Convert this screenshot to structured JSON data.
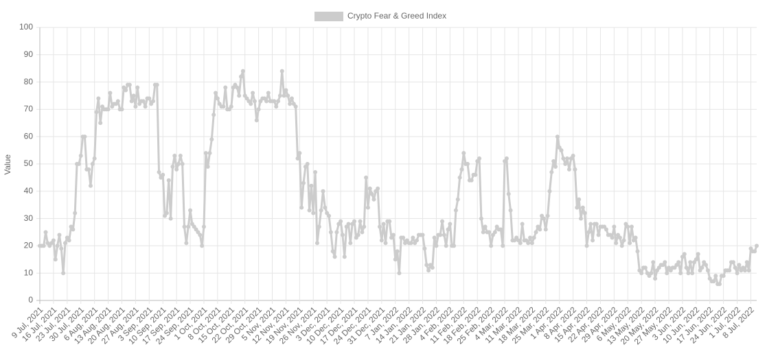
{
  "chart_data": {
    "type": "line",
    "y_label": "Value",
    "categories": [
      "9 Jul, 2021",
      null,
      null,
      null,
      null,
      null,
      null,
      "16 Jul, 2021",
      null,
      null,
      null,
      null,
      null,
      null,
      "23 Jul, 2021",
      null,
      null,
      null,
      null,
      null,
      null,
      "30 Jul, 2021",
      null,
      null,
      null,
      null,
      null,
      null,
      "6 Aug, 2021",
      null,
      null,
      null,
      null,
      null,
      null,
      "13 Aug, 2021",
      null,
      null,
      null,
      null,
      null,
      null,
      "20 Aug, 2021",
      null,
      null,
      null,
      null,
      null,
      null,
      "27 Aug, 2021",
      null,
      null,
      null,
      null,
      null,
      null,
      "3 Sep, 2021",
      null,
      null,
      null,
      null,
      null,
      null,
      "10 Sep, 2021",
      null,
      null,
      null,
      null,
      null,
      null,
      "17 Sep, 2021",
      null,
      null,
      null,
      null,
      null,
      null,
      "24 Sep, 2021",
      null,
      null,
      null,
      null,
      null,
      null,
      "1 Oct, 2021",
      null,
      null,
      null,
      null,
      null,
      null,
      "8 Oct, 2021",
      null,
      null,
      null,
      null,
      null,
      null,
      "15 Oct, 2021",
      null,
      null,
      null,
      null,
      null,
      null,
      "22 Oct, 2021",
      null,
      null,
      null,
      null,
      null,
      null,
      "29 Oct, 2021",
      null,
      null,
      null,
      null,
      null,
      null,
      "5 Nov, 2021",
      null,
      null,
      null,
      null,
      null,
      null,
      "12 Nov, 2021",
      null,
      null,
      null,
      null,
      null,
      null,
      "19 Nov, 2021",
      null,
      null,
      null,
      null,
      null,
      null,
      "26 Nov, 2021",
      null,
      null,
      null,
      null,
      null,
      null,
      "3 Dec, 2021",
      null,
      null,
      null,
      null,
      null,
      null,
      "10 Dec, 2021",
      null,
      null,
      null,
      null,
      null,
      null,
      "17 Dec, 2021",
      null,
      null,
      null,
      null,
      null,
      null,
      "24 Dec, 2021",
      null,
      null,
      null,
      null,
      null,
      null,
      "31 Dec, 2021",
      null,
      null,
      null,
      null,
      null,
      null,
      "7 Jan, 2022",
      null,
      null,
      null,
      null,
      null,
      null,
      "14 Jan, 2022",
      null,
      null,
      null,
      null,
      null,
      null,
      "21 Jan, 2022",
      null,
      null,
      null,
      null,
      null,
      null,
      "28 Jan, 2022",
      null,
      null,
      null,
      null,
      null,
      null,
      "4 Feb, 2022",
      null,
      null,
      null,
      null,
      null,
      null,
      "11 Feb, 2022",
      null,
      null,
      null,
      null,
      null,
      null,
      "18 Feb, 2022",
      null,
      null,
      null,
      null,
      null,
      null,
      "25 Feb, 2022",
      null,
      null,
      null,
      null,
      null,
      null,
      "4 Mar, 2022",
      null,
      null,
      null,
      null,
      null,
      null,
      "11 Mar, 2022",
      null,
      null,
      null,
      null,
      null,
      null,
      "18 Mar, 2022",
      null,
      null,
      null,
      null,
      null,
      null,
      "25 Mar, 2022",
      null,
      null,
      null,
      null,
      null,
      null,
      "1 Apr, 2022",
      null,
      null,
      null,
      null,
      null,
      null,
      "8 Apr, 2022",
      null,
      null,
      null,
      null,
      null,
      null,
      "15 Apr, 2022",
      null,
      null,
      null,
      null,
      null,
      null,
      "22 Apr, 2022",
      null,
      null,
      null,
      null,
      null,
      null,
      "29 Apr, 2022",
      null,
      null,
      null,
      null,
      null,
      null,
      "6 May, 2022",
      null,
      null,
      null,
      null,
      null,
      null,
      "13 May, 2022",
      null,
      null,
      null,
      null,
      null,
      null,
      "20 May, 2022",
      null,
      null,
      null,
      null,
      null,
      null,
      "27 May, 2022",
      null,
      null,
      null,
      null,
      null,
      null,
      "3 Jun, 2022",
      null,
      null,
      null,
      null,
      null,
      null,
      "10 Jun, 2022",
      null,
      null,
      null,
      null,
      null,
      null,
      "17 Jun, 2022",
      null,
      null,
      null,
      null,
      null,
      null,
      "24 Jun, 2022",
      null,
      null,
      null,
      null,
      null,
      null,
      "1 Jul, 2022",
      null,
      null,
      null,
      null,
      null,
      null,
      "8 Jul, 2022",
      null,
      null,
      null
    ],
    "series": [
      {
        "name": "Crypto Fear & Greed Index",
        "color": "#cccccc",
        "values": [
          20,
          20,
          20,
          25,
          21,
          20,
          21,
          22,
          15,
          20,
          24,
          19,
          10,
          21,
          23,
          22,
          27,
          26,
          32,
          50,
          50,
          53,
          60,
          60,
          48,
          48,
          42,
          50,
          52,
          69,
          74,
          65,
          71,
          70,
          70,
          70,
          76,
          71,
          72,
          72,
          73,
          70,
          70,
          78,
          77,
          79,
          79,
          73,
          75,
          71,
          78,
          72,
          73,
          73,
          71,
          74,
          74,
          72,
          73,
          79,
          79,
          47,
          45,
          46,
          31,
          32,
          44,
          30,
          49,
          53,
          48,
          50,
          53,
          50,
          27,
          21,
          27,
          33,
          28,
          27,
          26,
          25,
          24,
          20,
          27,
          54,
          49,
          54,
          59,
          68,
          76,
          74,
          72,
          71,
          71,
          78,
          70,
          70,
          71,
          78,
          79,
          78,
          75,
          82,
          84,
          75,
          74,
          73,
          72,
          76,
          73,
          66,
          70,
          73,
          74,
          74,
          73,
          76,
          73,
          73,
          73,
          71,
          73,
          75,
          84,
          75,
          77,
          75,
          72,
          74,
          72,
          71,
          52,
          54,
          34,
          43,
          49,
          50,
          33,
          42,
          32,
          47,
          21,
          27,
          33,
          40,
          34,
          32,
          31,
          25,
          18,
          16,
          25,
          28,
          29,
          24,
          16,
          27,
          28,
          21,
          28,
          29,
          23,
          24,
          29,
          25,
          27,
          45,
          34,
          41,
          39,
          37,
          40,
          41,
          27,
          22,
          28,
          21,
          29,
          29,
          23,
          24,
          15,
          18,
          10,
          23,
          23,
          21,
          22,
          21,
          21,
          23,
          21,
          22,
          24,
          24,
          24,
          19,
          13,
          11,
          13,
          12,
          23,
          20,
          24,
          24,
          29,
          24,
          20,
          26,
          28,
          20,
          20,
          33,
          37,
          45,
          48,
          54,
          50,
          50,
          44,
          44,
          46,
          46,
          51,
          52,
          30,
          25,
          27,
          25,
          25,
          20,
          24,
          25,
          27,
          26,
          26,
          20,
          51,
          52,
          39,
          33,
          22,
          22,
          23,
          22,
          21,
          28,
          22,
          22,
          21,
          23,
          21,
          23,
          25,
          27,
          26,
          31,
          30,
          26,
          31,
          40,
          47,
          51,
          49,
          60,
          56,
          55,
          52,
          50,
          52,
          48,
          52,
          53,
          48,
          34,
          37,
          30,
          34,
          32,
          20,
          25,
          28,
          22,
          28,
          28,
          24,
          27,
          27,
          27,
          26,
          24,
          24,
          23,
          27,
          21,
          24,
          23,
          20,
          22,
          28,
          27,
          21,
          27,
          22,
          23,
          18,
          11,
          10,
          12,
          12,
          10,
          9,
          10,
          14,
          8,
          11,
          12,
          13,
          13,
          14,
          10,
          12,
          11,
          12,
          12,
          13,
          14,
          10,
          16,
          17,
          12,
          10,
          14,
          10,
          14,
          15,
          17,
          11,
          12,
          14,
          13,
          11,
          8,
          7,
          7,
          9,
          6,
          6,
          9,
          9,
          11,
          11,
          11,
          14,
          14,
          12,
          10,
          13,
          11,
          12,
          11,
          14,
          11,
          19,
          18,
          18,
          20
        ]
      }
    ],
    "ylim": [
      0,
      100
    ],
    "yticks": [
      0,
      10,
      20,
      30,
      40,
      50,
      60,
      70,
      80,
      90,
      100
    ],
    "grid": true,
    "legend": "top"
  }
}
